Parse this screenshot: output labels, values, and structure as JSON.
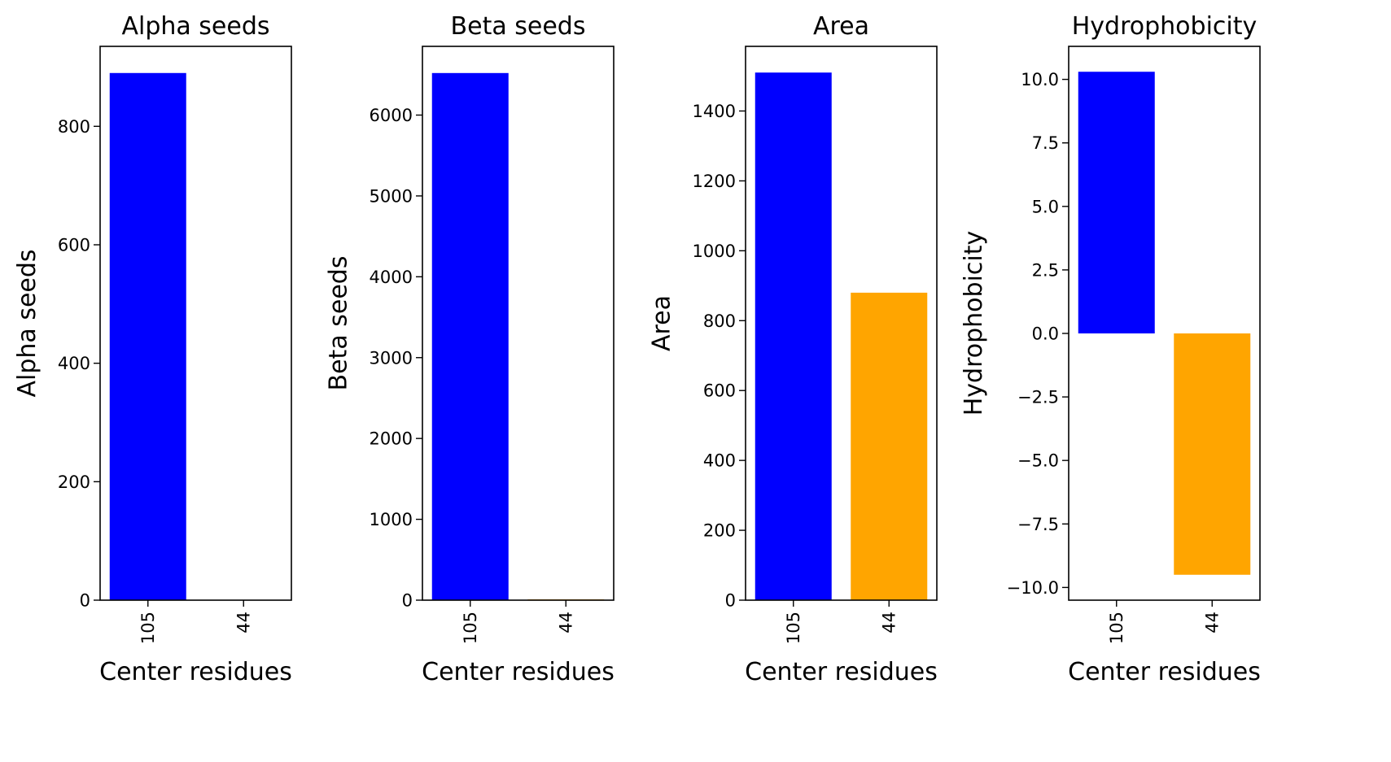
{
  "colors": {
    "series_a": "#0000ff",
    "series_b": "#ffa500"
  },
  "chart_data": [
    {
      "type": "bar",
      "title": "Alpha seeds",
      "xlabel": "Center residues",
      "ylabel": "Alpha seeds",
      "categories": [
        "105",
        "44"
      ],
      "values": [
        890,
        0
      ],
      "bar_colors": [
        "#0000ff",
        "#ffa500"
      ],
      "ylim": [
        0,
        935
      ],
      "yticks": [
        0,
        200,
        400,
        600,
        800
      ],
      "ytick_labels": [
        "0",
        "200",
        "400",
        "600",
        "800"
      ],
      "grid": false
    },
    {
      "type": "bar",
      "title": "Beta seeds",
      "xlabel": "Center residues",
      "ylabel": "Beta seeds",
      "categories": [
        "105",
        "44"
      ],
      "values": [
        6520,
        10
      ],
      "bar_colors": [
        "#0000ff",
        "#ffa500"
      ],
      "ylim": [
        0,
        6850
      ],
      "yticks": [
        0,
        1000,
        2000,
        3000,
        4000,
        5000,
        6000
      ],
      "ytick_labels": [
        "0",
        "1000",
        "2000",
        "3000",
        "4000",
        "5000",
        "6000"
      ],
      "grid": false
    },
    {
      "type": "bar",
      "title": "Area",
      "xlabel": "Center residues",
      "ylabel": "Area",
      "categories": [
        "105",
        "44"
      ],
      "values": [
        1510,
        880
      ],
      "bar_colors": [
        "#0000ff",
        "#ffa500"
      ],
      "ylim": [
        0,
        1585
      ],
      "yticks": [
        0,
        200,
        400,
        600,
        800,
        1000,
        1200,
        1400
      ],
      "ytick_labels": [
        "0",
        "200",
        "400",
        "600",
        "800",
        "1000",
        "1200",
        "1400"
      ],
      "grid": false
    },
    {
      "type": "bar",
      "title": "Hydrophobicity",
      "xlabel": "Center residues",
      "ylabel": "Hydrophobicity",
      "categories": [
        "105",
        "44"
      ],
      "values": [
        10.3,
        -9.5
      ],
      "bar_colors": [
        "#0000ff",
        "#ffa500"
      ],
      "ylim": [
        -10.5,
        11.3
      ],
      "yticks": [
        -10.0,
        -7.5,
        -5.0,
        -2.5,
        0.0,
        2.5,
        5.0,
        7.5,
        10.0
      ],
      "ytick_labels": [
        "−10.0",
        "−7.5",
        "−5.0",
        "−2.5",
        "0.0",
        "2.5",
        "5.0",
        "7.5",
        "10.0"
      ],
      "grid": false
    }
  ]
}
